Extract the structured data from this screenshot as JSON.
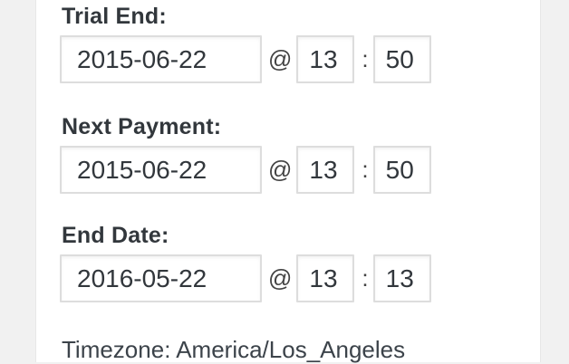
{
  "colors": {
    "page_background": "#f1f1f1",
    "panel_background": "#ffffff",
    "input_border": "#dddddd",
    "label_text": "#32373c",
    "secondary_text": "#444444"
  },
  "fields": [
    {
      "label": "Trial End:",
      "date_value": "2015-06-22",
      "at_separator": "@",
      "hour_value": "13",
      "time_separator": ":",
      "minute_value": "50"
    },
    {
      "label": "Next Payment:",
      "date_value": "2015-06-22",
      "at_separator": "@",
      "hour_value": "13",
      "time_separator": ":",
      "minute_value": "50"
    },
    {
      "label": "End Date:",
      "date_value": "2016-05-22",
      "at_separator": "@",
      "hour_value": "13",
      "time_separator": ":",
      "minute_value": "13"
    }
  ],
  "timezone_note": "Timezone: America/Los_Angeles"
}
